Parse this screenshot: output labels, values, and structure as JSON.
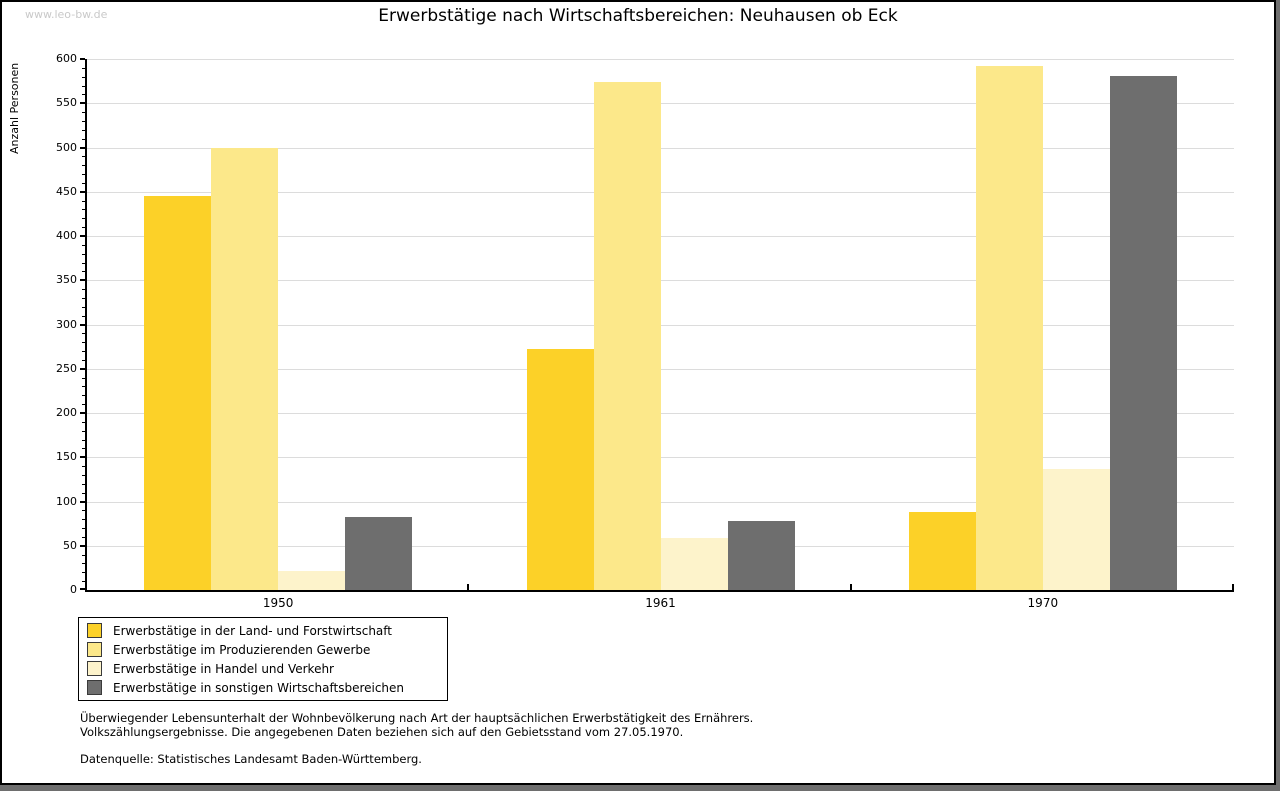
{
  "watermark": "www.leo-bw.de",
  "title": "Erwerbstätige nach Wirtschaftsbereichen: Neuhausen ob Eck",
  "chart_data": {
    "type": "bar",
    "title": "Erwerbstätige nach Wirtschaftsbereichen: Neuhausen ob Eck",
    "xlabel": "",
    "ylabel": "Anzahl Personen",
    "ylim": [
      0,
      600
    ],
    "yticks": [
      0,
      50,
      100,
      150,
      200,
      250,
      300,
      350,
      400,
      450,
      500,
      550,
      600
    ],
    "minor_tick_step": 10,
    "grid": true,
    "legend_position": "bottom-left",
    "categories": [
      "1950",
      "1961",
      "1970"
    ],
    "series": [
      {
        "name": "Erwerbstätige in der Land- und Forstwirtschaft",
        "color": "#FCD128",
        "values": [
          445,
          272,
          88
        ]
      },
      {
        "name": "Erwerbstätige im Produzierenden Gewerbe",
        "color": "#FCE88A",
        "values": [
          500,
          574,
          592
        ]
      },
      {
        "name": "Erwerbstätige in Handel und Verkehr",
        "color": "#FDF3CB",
        "values": [
          22,
          59,
          137
        ]
      },
      {
        "name": "Erwerbstätige in sonstigen Wirtschaftsbereichen",
        "color": "#6E6E6E",
        "values": [
          83,
          78,
          581
        ]
      }
    ]
  },
  "footnotes": {
    "line1": "Überwiegender Lebensunterhalt der Wohnbevölkerung nach Art der hauptsächlichen Erwerbstätigkeit des Ernährers.",
    "line2": "Volkszählungsergebnisse. Die angegebenen Daten beziehen sich auf den Gebietsstand vom 27.05.1970.",
    "source": "Datenquelle: Statistisches Landesamt Baden-Württemberg."
  }
}
